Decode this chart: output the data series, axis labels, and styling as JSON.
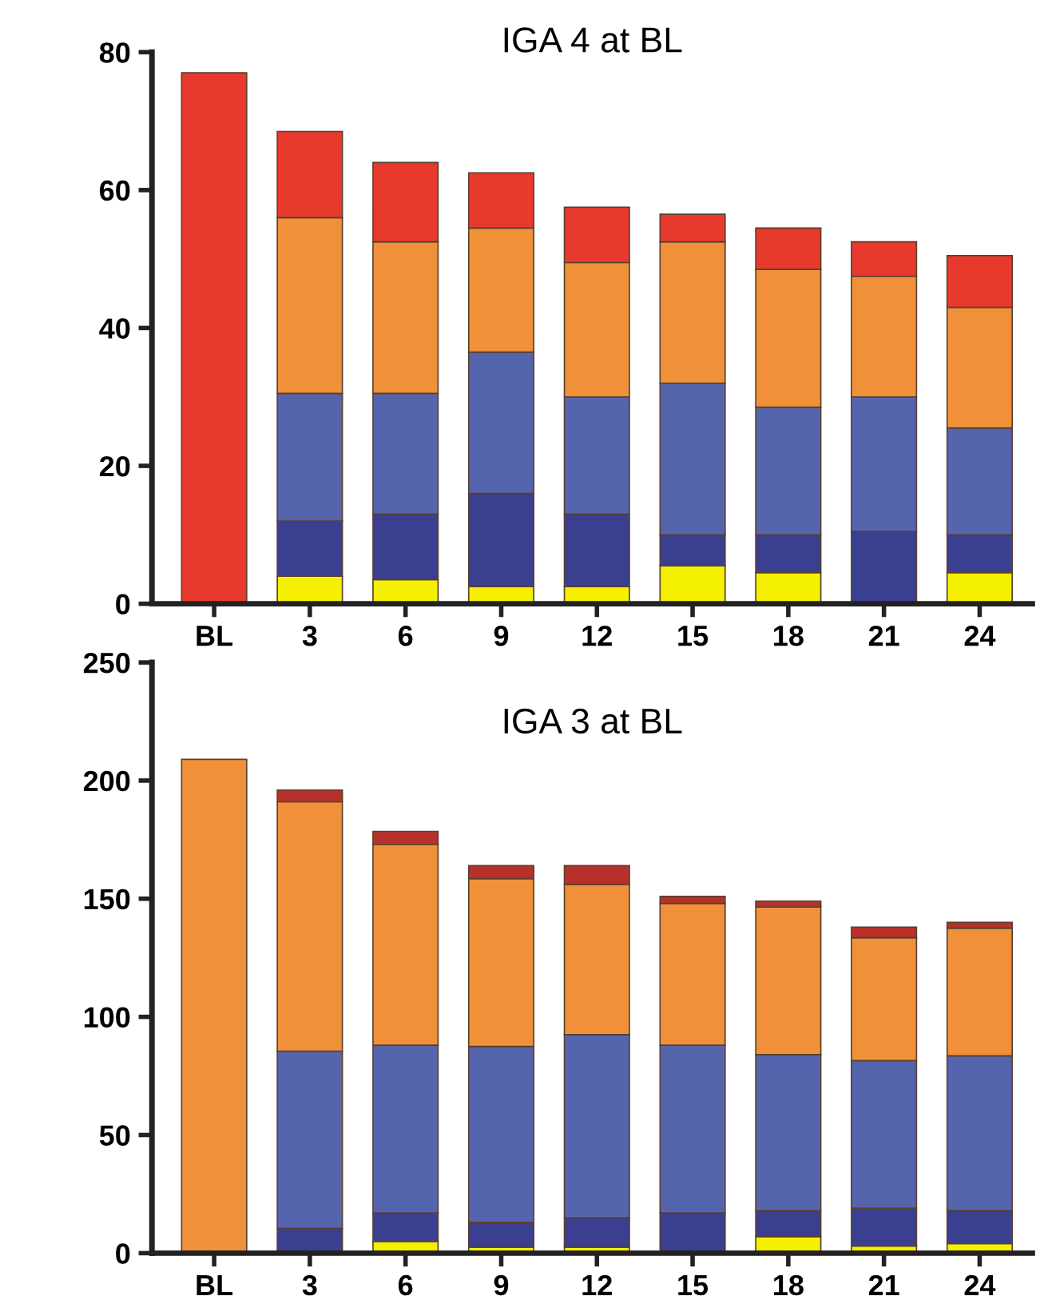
{
  "chart_data": [
    {
      "type": "bar",
      "title": "IGA 4 at BL",
      "stacked": true,
      "categories": [
        "BL",
        "3",
        "6",
        "9",
        "12",
        "15",
        "18",
        "21",
        "24"
      ],
      "ylim": [
        0,
        80
      ],
      "yticks": [
        0,
        20,
        40,
        60,
        80
      ],
      "grid": false,
      "legend": false,
      "series": [
        {
          "color": "#f5f000",
          "values": [
            null,
            4,
            3.5,
            2.5,
            2.5,
            5.5,
            4.5,
            null,
            4.5
          ]
        },
        {
          "color": "#3a3f8f",
          "values": [
            null,
            8,
            9.5,
            13.5,
            10.5,
            4.5,
            5.5,
            10.5,
            5.5
          ]
        },
        {
          "color": "#5565ad",
          "values": [
            null,
            18.5,
            17.5,
            20.5,
            17,
            22,
            18.5,
            19.5,
            15.5
          ]
        },
        {
          "color": "#f0913a",
          "values": [
            null,
            25.5,
            22,
            18,
            19.5,
            20.5,
            20,
            17.5,
            17.5
          ]
        },
        {
          "color": "#e8392d",
          "values": [
            77,
            12.5,
            11.5,
            8,
            8,
            4,
            6,
            5,
            7.5
          ]
        }
      ]
    },
    {
      "type": "bar",
      "title": "IGA 3 at BL",
      "stacked": true,
      "categories": [
        "BL",
        "3",
        "6",
        "9",
        "12",
        "15",
        "18",
        "21",
        "24"
      ],
      "ylim": [
        0,
        250
      ],
      "yticks": [
        0,
        50,
        100,
        150,
        200,
        250
      ],
      "grid": false,
      "legend": false,
      "series": [
        {
          "color": "#f5f000",
          "values": [
            null,
            null,
            5,
            2.5,
            2.5,
            null,
            7,
            3,
            4
          ]
        },
        {
          "color": "#3a3f8f",
          "values": [
            null,
            10.5,
            12,
            10.5,
            12.5,
            17,
            11,
            16,
            14
          ]
        },
        {
          "color": "#5565ad",
          "values": [
            null,
            75,
            71,
            74.5,
            77.5,
            71,
            66,
            62.5,
            65.5
          ]
        },
        {
          "color": "#f0913a",
          "values": [
            209,
            105.5,
            85,
            71,
            63.5,
            60,
            62.5,
            52,
            54
          ]
        },
        {
          "color": "#b8302a",
          "values": [
            null,
            5,
            5.5,
            5.5,
            8,
            3,
            2.5,
            4.5,
            2.5
          ]
        }
      ]
    }
  ]
}
